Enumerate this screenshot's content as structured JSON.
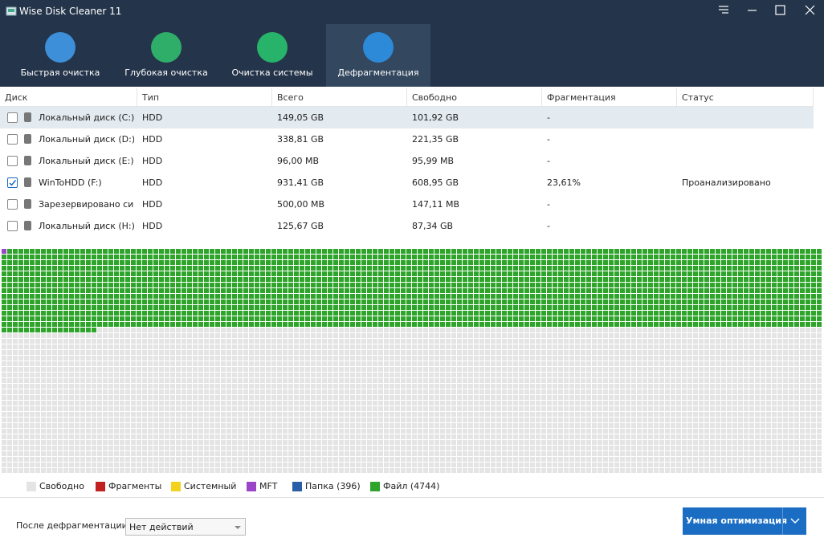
{
  "header": {
    "title": "Wise Disk Cleaner 11",
    "tabs": [
      {
        "label": "Быстрая очистка",
        "color": "#3c8fd8"
      },
      {
        "label": "Глубокая очистка",
        "color": "#2fae6a"
      },
      {
        "label": "Очистка системы",
        "color": "#28b36b"
      },
      {
        "label": "Дефрагментация",
        "color": "#2d8ad8",
        "active": true
      }
    ]
  },
  "table": {
    "columns": [
      "Диск",
      "Тип",
      "Всего",
      "Свободно",
      "Фрагментация",
      "Статус"
    ],
    "rows": [
      {
        "checked": false,
        "cells": [
          "Локальный диск (C:)",
          "HDD",
          "149,05 GB",
          "101,92 GB",
          "-",
          ""
        ]
      },
      {
        "checked": false,
        "cells": [
          "Локальный диск (D:)",
          "HDD",
          "338,81 GB",
          "221,35 GB",
          "-",
          ""
        ]
      },
      {
        "checked": false,
        "cells": [
          "Локальный диск (E:)",
          "HDD",
          "96,00 MB",
          "95,99 MB",
          "-",
          ""
        ]
      },
      {
        "checked": true,
        "cells": [
          "WinToHDD (F:)",
          "HDD",
          "931,41 GB",
          "608,95 GB",
          "23,61%",
          "Проанализировано"
        ]
      },
      {
        "checked": false,
        "cells": [
          "Зарезервировано сис...",
          "HDD",
          "500,00 MB",
          "147,11 MB",
          "-",
          ""
        ]
      },
      {
        "checked": false,
        "cells": [
          "Локальный диск (H:)",
          "HDD",
          "125,67 GB",
          "87,34 GB",
          "-",
          ""
        ]
      }
    ]
  },
  "legend": [
    {
      "label": "Свободно",
      "color": "#e4e4e4"
    },
    {
      "label": "Фрагменты",
      "color": "#c0201e"
    },
    {
      "label": "Системный",
      "color": "#f2d21c"
    },
    {
      "label": "MFT",
      "color": "#9b45c9"
    },
    {
      "label": "Папка (396)",
      "color": "#2a5fa8"
    },
    {
      "label": "Файл (4744)",
      "color": "#2ea42a"
    }
  ],
  "footer": {
    "after_label": "После дефрагментации:",
    "after_value": "Нет действий",
    "button": "Умная оптимизация"
  }
}
